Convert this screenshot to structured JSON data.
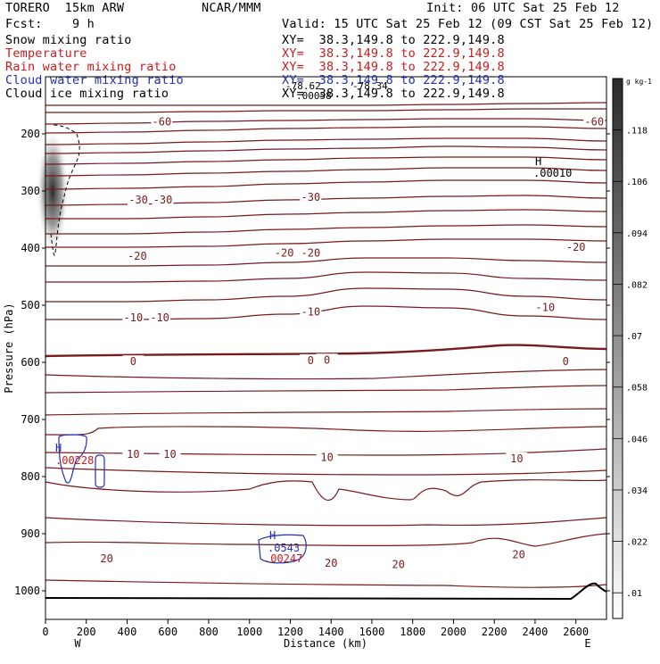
{
  "header": {
    "model": "TORERO  15km ARW",
    "institution": "NCAR/MMM",
    "init": "Init: 06 UTC Sat 25 Feb 12",
    "fcst": "Fcst:    9 h",
    "valid": "Valid: 15 UTC Sat 25 Feb 12 (09 CST Sat 25 Feb 12)"
  },
  "colors": {
    "text": "#000000",
    "temperature": "#7a1a1a",
    "temperature_label": "#c02020",
    "rain": "#d01818",
    "cloud_water": "#2030b0",
    "ice_shade": "#303030"
  },
  "fields": [
    {
      "name": "Snow mixing ratio",
      "xy": "XY=  38.3,149.8 to 222.9,149.8",
      "color": "#000000"
    },
    {
      "name": "Temperature",
      "xy": "XY=  38.3,149.8 to 222.9,149.8",
      "color": "#c02020"
    },
    {
      "name": "Rain water mixing ratio",
      "xy": "XY=  38.3,149.8 to 222.9,149.8",
      "color": "#d01818"
    },
    {
      "name": "Cloud water mixing ratio",
      "xy": "XY=  38.3,149.8 to 222.9,149.8",
      "color": "#2030b0"
    },
    {
      "name": "Cloud ice mixing ratio",
      "xy": "XY=  38.3,149.8 to 222.9,149.8",
      "color": "#000000"
    }
  ],
  "annotations": {
    "upper_h": "H",
    "upper_h_value": ".00010",
    "top_labels": [
      "-78.62",
      "-78.34",
      ".00058"
    ],
    "left_h": "H",
    "left_h_value": ".00228",
    "mid_h": "H",
    "mid_h_value": ".0543",
    "mid_h_value2": ".00247"
  },
  "chart_data": {
    "type": "contour",
    "title": "",
    "xlabel": "Distance (km)",
    "ylabel": "Pressure (hPa)",
    "xlim": [
      0,
      2750
    ],
    "ylim": [
      1050,
      100
    ],
    "x_ticks": [
      0,
      200,
      400,
      600,
      800,
      1000,
      1200,
      1400,
      1600,
      1800,
      2000,
      2200,
      2400,
      2600
    ],
    "y_ticks": [
      200,
      300,
      400,
      500,
      600,
      700,
      800,
      900,
      1000
    ],
    "direction_labels": [
      "W",
      "E"
    ],
    "temperature_contour_interval_C": 5,
    "temperature_labels": [
      {
        "value": "-60",
        "x": 570,
        "p": 185
      },
      {
        "value": "-60",
        "x": 2690,
        "p": 185
      },
      {
        "value": "-30",
        "x": 455,
        "p": 322
      },
      {
        "value": "-30",
        "x": 575,
        "p": 322
      },
      {
        "value": "-30",
        "x": 1300,
        "p": 317
      },
      {
        "value": "-20",
        "x": 450,
        "p": 420
      },
      {
        "value": "-20",
        "x": 1170,
        "p": 415
      },
      {
        "value": "-20",
        "x": 1300,
        "p": 415
      },
      {
        "value": "-20",
        "x": 2600,
        "p": 405
      },
      {
        "value": "-10",
        "x": 430,
        "p": 528
      },
      {
        "value": "-10",
        "x": 560,
        "p": 528
      },
      {
        "value": "-10",
        "x": 1300,
        "p": 518
      },
      {
        "value": "-10",
        "x": 2450,
        "p": 510
      },
      {
        "value": "0",
        "x": 430,
        "p": 605
      },
      {
        "value": "0",
        "x": 1300,
        "p": 603
      },
      {
        "value": "0",
        "x": 1380,
        "p": 602
      },
      {
        "value": "0",
        "x": 2550,
        "p": 605
      },
      {
        "value": "10",
        "x": 430,
        "p": 767
      },
      {
        "value": "10",
        "x": 610,
        "p": 767
      },
      {
        "value": "10",
        "x": 1380,
        "p": 773
      },
      {
        "value": "10",
        "x": 2310,
        "p": 775
      },
      {
        "value": "20",
        "x": 300,
        "p": 950
      },
      {
        "value": "20",
        "x": 1400,
        "p": 958
      },
      {
        "value": "20",
        "x": 1730,
        "p": 960
      },
      {
        "value": "20",
        "x": 2320,
        "p": 943
      }
    ],
    "colorbar": {
      "title": "g kg-1",
      "labels": [
        ".01",
        ".022",
        ".034",
        ".046",
        ".058",
        ".07",
        ".082",
        ".094",
        ".106",
        ".118"
      ]
    }
  }
}
